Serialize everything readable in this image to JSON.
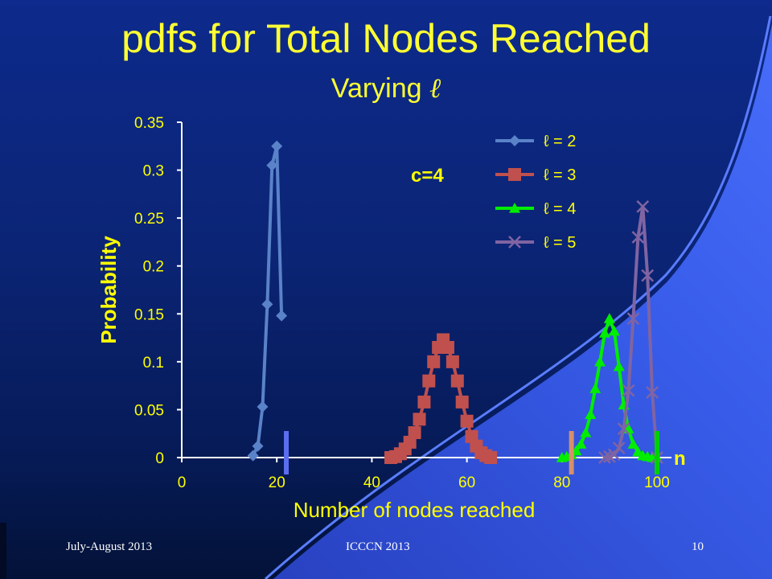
{
  "slide": {
    "title": "pdfs for Total Nodes Reached",
    "subtitle_text": "Varying ",
    "subtitle_symbol": "ℓ",
    "footer_left": "July-August 2013",
    "footer_center": "ICCCN 2013",
    "page_number": "10"
  },
  "colors": {
    "title": "#ffff33",
    "axis_text": "#ffff00",
    "background": "#0b2474",
    "swoosh": "#3a5ff0"
  },
  "chart_data": {
    "type": "line",
    "xlabel": "Number of nodes reached",
    "ylabel": "Probability",
    "xlim": [
      0,
      100
    ],
    "ylim": [
      0,
      0.35
    ],
    "x_ticks": [
      0,
      20,
      40,
      60,
      80,
      100
    ],
    "y_ticks": [
      0,
      0.05,
      0.1,
      0.15,
      0.2,
      0.25,
      0.3,
      0.35
    ],
    "y_tick_labels": [
      "0",
      "0.05",
      "0.1",
      "0.15",
      "0.2",
      "0.25",
      "0.3",
      "0.35"
    ],
    "grid": false,
    "legend_position": "top-right",
    "annotation": "c=4",
    "axis_end_label": "n",
    "series": [
      {
        "name": "ℓ = 2",
        "color": "#5a82c8",
        "marker": "diamond",
        "x": [
          15,
          16,
          17,
          18,
          19,
          20,
          21
        ],
        "y": [
          0.002,
          0.012,
          0.053,
          0.16,
          0.305,
          0.325,
          0.148
        ]
      },
      {
        "name": "ℓ = 3",
        "color": "#c0504d",
        "marker": "square",
        "x": [
          44,
          45,
          46,
          47,
          48,
          49,
          50,
          51,
          52,
          53,
          54,
          55,
          56,
          57,
          58,
          59,
          60,
          61,
          62,
          63,
          64,
          65
        ],
        "y": [
          0.0,
          0.001,
          0.004,
          0.009,
          0.016,
          0.026,
          0.04,
          0.058,
          0.08,
          0.1,
          0.115,
          0.123,
          0.115,
          0.1,
          0.08,
          0.058,
          0.038,
          0.022,
          0.012,
          0.005,
          0.002,
          0.0
        ]
      },
      {
        "name": "ℓ = 4",
        "color": "#00ee00",
        "marker": "triangle",
        "x": [
          80,
          81,
          82,
          83,
          84,
          85,
          86,
          87,
          88,
          89,
          90,
          91,
          92,
          93,
          94,
          95,
          96,
          97,
          98,
          99,
          100
        ],
        "y": [
          0.0,
          0.001,
          0.003,
          0.007,
          0.014,
          0.026,
          0.045,
          0.072,
          0.1,
          0.13,
          0.145,
          0.132,
          0.095,
          0.055,
          0.03,
          0.014,
          0.006,
          0.002,
          0.001,
          0.0,
          0.0
        ]
      },
      {
        "name": "ℓ = 5",
        "color": "#8064a2",
        "marker": "x",
        "x": [
          89,
          90,
          91,
          92,
          93,
          94,
          95,
          96,
          97,
          98,
          99,
          100
        ],
        "y": [
          0.0,
          0.001,
          0.003,
          0.01,
          0.03,
          0.07,
          0.145,
          0.23,
          0.262,
          0.19,
          0.068,
          0.0
        ]
      }
    ],
    "vertical_markers": [
      {
        "x": 22,
        "color": "#5b6ef0"
      },
      {
        "x": 82,
        "color": "#d4906a"
      },
      {
        "x": 100,
        "color": "#00d000"
      }
    ]
  }
}
